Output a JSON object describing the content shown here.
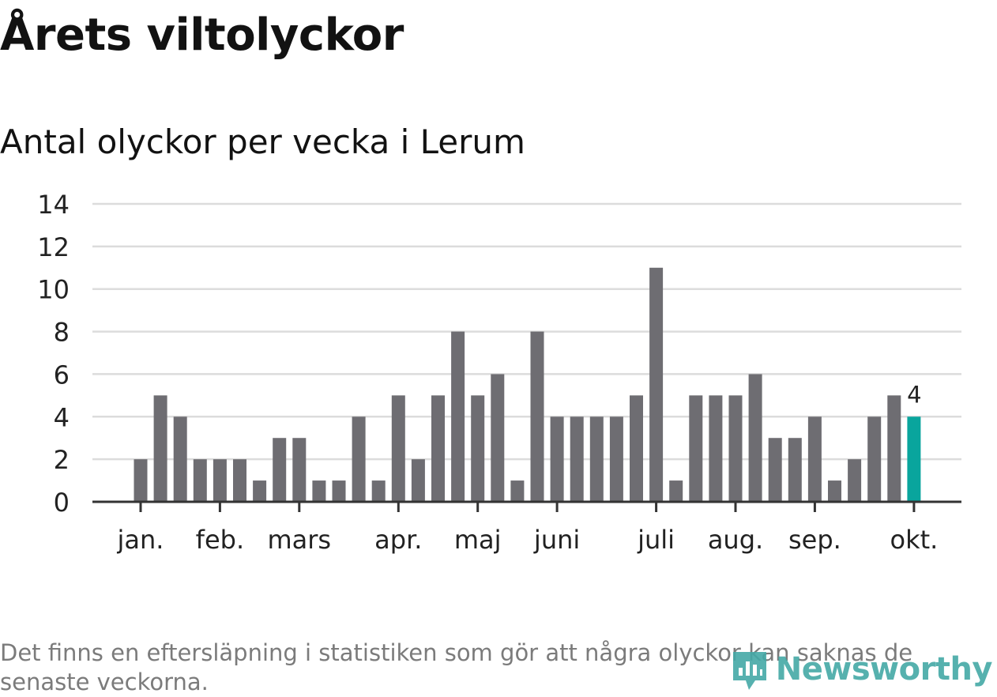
{
  "title": "Årets viltolyckor",
  "subtitle": "Antal olyckor per vecka i Lerum",
  "footnote": "Det finns en eftersläpning i statistiken som gör att några olyckor kan saknas de senaste veckorna.",
  "logo_text": "Newsworthy",
  "colors": {
    "bar": "#6e6d72",
    "highlight": "#09a59d",
    "grid": "#dcdcdc",
    "axis": "#333333"
  },
  "chart_data": {
    "type": "bar",
    "title": "Årets viltolyckor",
    "subtitle": "Antal olyckor per vecka i Lerum",
    "xlabel": "",
    "ylabel": "",
    "ylim": [
      0,
      14
    ],
    "yticks": [
      0,
      2,
      4,
      6,
      8,
      10,
      12,
      14
    ],
    "grid": true,
    "weeks": [
      1,
      2,
      3,
      4,
      5,
      6,
      7,
      8,
      9,
      10,
      11,
      12,
      13,
      14,
      15,
      16,
      17,
      18,
      19,
      20,
      21,
      22,
      23,
      24,
      25,
      26,
      27,
      28,
      29,
      30,
      31,
      32,
      33,
      34,
      35,
      36,
      37,
      38,
      39,
      40
    ],
    "values": [
      2,
      5,
      4,
      2,
      2,
      2,
      1,
      3,
      3,
      1,
      1,
      4,
      1,
      5,
      2,
      5,
      8,
      5,
      6,
      1,
      8,
      4,
      4,
      4,
      4,
      5,
      11,
      1,
      5,
      5,
      5,
      6,
      3,
      3,
      4,
      1,
      2,
      4,
      5,
      4
    ],
    "highlight_index": 39,
    "highlight_label": "4",
    "month_labels": [
      {
        "label": "jan.",
        "week": 1
      },
      {
        "label": "feb.",
        "week": 5
      },
      {
        "label": "mars",
        "week": 9
      },
      {
        "label": "apr.",
        "week": 14
      },
      {
        "label": "maj",
        "week": 18
      },
      {
        "label": "juni",
        "week": 22
      },
      {
        "label": "juli",
        "week": 27
      },
      {
        "label": "aug.",
        "week": 31
      },
      {
        "label": "sep.",
        "week": 35
      },
      {
        "label": "okt.",
        "week": 40
      }
    ]
  }
}
